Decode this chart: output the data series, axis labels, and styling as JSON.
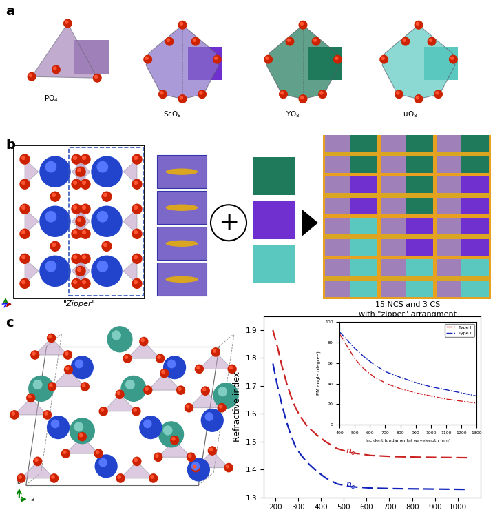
{
  "panel_label_fontsize": 14,
  "panel_label_fontweight": "bold",
  "colors": {
    "PO4": "#A080B8",
    "ScO8_poly": "#8870C8",
    "ScO8_sq": "#7030D0",
    "YO8": "#1E7A5A",
    "LuO8": "#5BC8C0",
    "purple_bg": "#7B68C8",
    "purple_light": "#A080B8",
    "purple_bright": "#7030D0",
    "teal_dark": "#1E7A5A",
    "teal_light": "#5BC8C0",
    "orange_border": "#E8A020",
    "gold": "#DAA520",
    "red_sphere": "#CC2200",
    "red_sphere_hi": "#FF5533",
    "blue_sphere": "#2244CC",
    "blue_sphere_hi": "#5577FF",
    "teal_sphere": "#3A9B8A",
    "teal_sphere_hi": "#7ECDC0",
    "poly_purple": "#C0A0C8",
    "poly_edge": "#888899",
    "red_curve": "#CC2222",
    "blue_curve": "#1122BB"
  },
  "refractive_index": {
    "wavelength_main": [
      190,
      210,
      230,
      250,
      270,
      290,
      310,
      340,
      380,
      420,
      470,
      530,
      620,
      720,
      830,
      940,
      1050
    ],
    "n_o": [
      1.9,
      1.84,
      1.77,
      1.71,
      1.66,
      1.62,
      1.59,
      1.555,
      1.525,
      1.5,
      1.475,
      1.46,
      1.45,
      1.446,
      1.444,
      1.443,
      1.442
    ],
    "n_e": [
      1.78,
      1.7,
      1.63,
      1.57,
      1.52,
      1.48,
      1.455,
      1.425,
      1.395,
      1.37,
      1.348,
      1.338,
      1.333,
      1.331,
      1.33,
      1.329,
      1.328
    ],
    "xlabel": "Wavelength (nm)",
    "ylabel": "Refractive index",
    "xlim": [
      150,
      1100
    ],
    "ylim": [
      1.3,
      1.95
    ],
    "yticks": [
      1.3,
      1.4,
      1.5,
      1.6,
      1.7,
      1.8,
      1.9
    ],
    "xticks": [
      200,
      300,
      400,
      500,
      600,
      700,
      800,
      900,
      1000
    ]
  },
  "inset": {
    "wavelength": [
      400,
      450,
      500,
      560,
      630,
      710,
      800,
      900,
      1000,
      1100,
      1200,
      1300
    ],
    "type1": [
      88,
      76,
      64,
      54,
      46,
      40,
      35,
      31,
      28,
      25,
      23,
      21
    ],
    "type2": [
      90,
      82,
      74,
      66,
      58,
      51,
      46,
      41,
      37,
      34,
      31,
      28
    ],
    "xlabel": "Incident fundamental wavelength (nm)",
    "ylabel": "PM angle (degree)",
    "xlim": [
      400,
      1300
    ],
    "ylim": [
      0,
      100
    ],
    "yticks": [
      0,
      20,
      40,
      60,
      80,
      100
    ],
    "xticks": [
      400,
      500,
      600,
      700,
      800,
      900,
      1000,
      1100,
      1200,
      1300
    ]
  },
  "text_15NCS": "15 NCS and 3 CS\nwith \"zipper\" arrangment",
  "zipper_label": "\"Zipper\"",
  "grid_colors": [
    [
      "teal_dark",
      "teal_dark",
      "teal_dark"
    ],
    [
      "purple_bright",
      "teal_dark",
      "purple_bright"
    ],
    [
      "teal_light",
      "purple_bright",
      "purple_bright"
    ],
    [
      "teal_light",
      "teal_light",
      "teal_light"
    ]
  ]
}
